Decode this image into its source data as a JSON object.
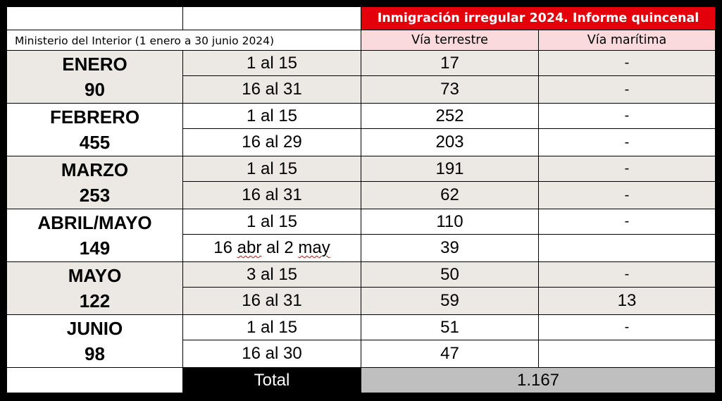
{
  "header": {
    "source": "Ministerio del Interior (1 enero a 30 junio 2024)",
    "title": "Inmigración irregular 2024. Informe quincenal",
    "col_land": "Vía terrestre",
    "col_sea": "Vía marítima"
  },
  "rows": [
    {
      "month": "ENERO",
      "subtotal": "90",
      "periods": [
        {
          "period": "1 al 15",
          "land": "17",
          "sea": "-"
        },
        {
          "period": "16 al 31",
          "land": "73",
          "sea": "-"
        }
      ]
    },
    {
      "month": "FEBRERO",
      "subtotal": "455",
      "periods": [
        {
          "period": "1 al 15",
          "land": "252",
          "sea": "-"
        },
        {
          "period": "16 al 29",
          "land": "203",
          "sea": "-"
        }
      ]
    },
    {
      "month": "MARZO",
      "subtotal": "253",
      "periods": [
        {
          "period": "1 al 15",
          "land": "191",
          "sea": "-"
        },
        {
          "period": "16 al 31",
          "land": "62",
          "sea": "-"
        }
      ]
    },
    {
      "month": "ABRIL/MAYO",
      "subtotal": "149",
      "periods": [
        {
          "period": "1 al 15",
          "land": "110",
          "sea": "-"
        },
        {
          "period_a": "16 ",
          "period_b": "abr",
          "period_c": " al 2 ",
          "period_d": "may",
          "land": "39",
          "sea": ""
        }
      ]
    },
    {
      "month": "MAYO",
      "subtotal": "122",
      "periods": [
        {
          "period": "3 al 15",
          "land": "50",
          "sea": "-"
        },
        {
          "period": "16 al 31",
          "land": "59",
          "sea": "13"
        }
      ]
    },
    {
      "month": "JUNIO",
      "subtotal": "98",
      "periods": [
        {
          "period": "1 al 15",
          "land": "51",
          "sea": "-"
        },
        {
          "period": "16 al 30",
          "land": "47",
          "sea": ""
        }
      ]
    }
  ],
  "total": {
    "label": "Total",
    "value": "1.167"
  },
  "colors": {
    "title_bg": "#e3000b",
    "subheader_bg": "#fadadd",
    "shaded_row": "#ece9e4",
    "total_label_bg": "#000000",
    "total_value_bg": "#bfbfbf"
  }
}
